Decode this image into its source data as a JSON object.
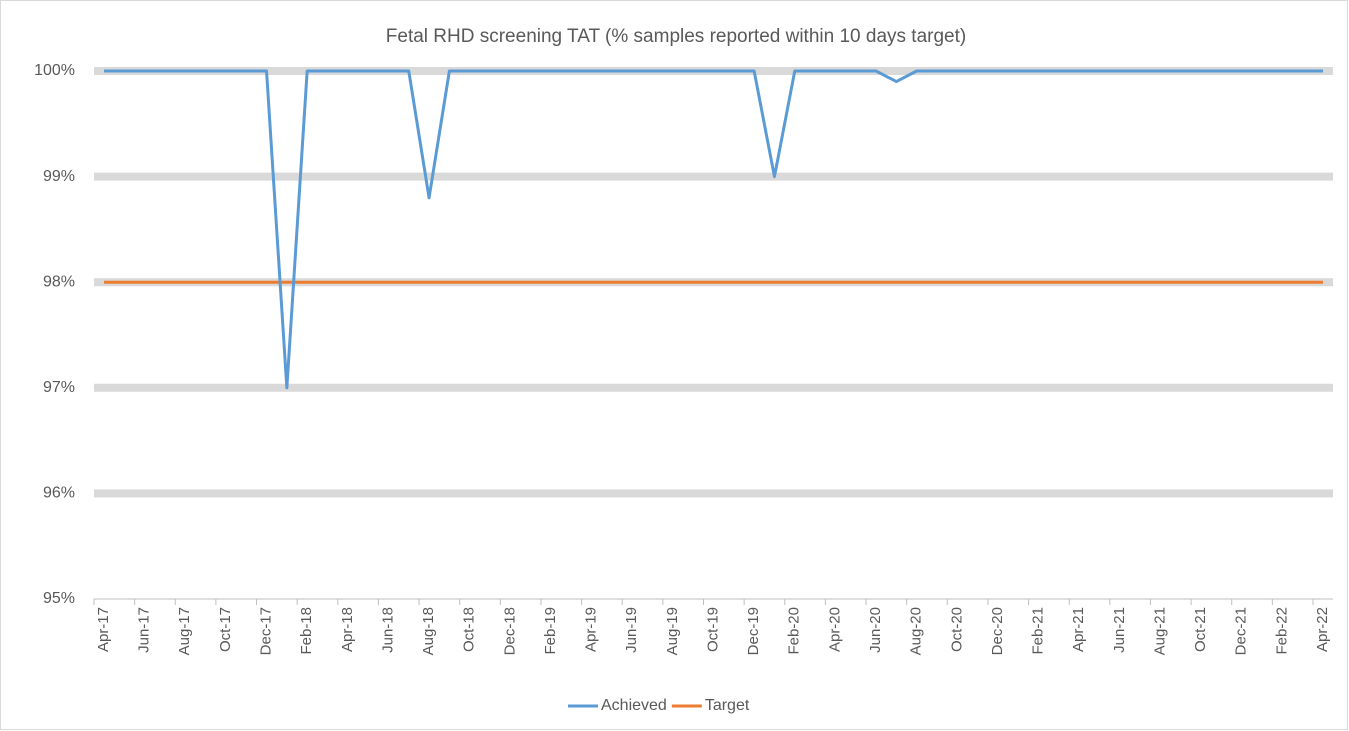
{
  "chart_data": {
    "type": "line",
    "title": "Fetal RHD screening TAT (% samples reported within 10 days target)",
    "categories": [
      "Apr-17",
      null,
      "Jun-17",
      null,
      "Aug-17",
      null,
      "Oct-17",
      null,
      "Dec-17",
      null,
      "Feb-18",
      null,
      "Apr-18",
      null,
      "Jun-18",
      null,
      "Aug-18",
      null,
      "Oct-18",
      null,
      "Dec-18",
      null,
      "Feb-19",
      null,
      "Apr-19",
      null,
      "Jun-19",
      null,
      "Aug-19",
      null,
      "Oct-19",
      null,
      "Dec-19",
      null,
      "Feb-20",
      null,
      "Apr-20",
      null,
      "Jun-20",
      null,
      "Aug-20",
      null,
      "Oct-20",
      null,
      "Dec-20",
      null,
      "Feb-21",
      null,
      "Apr-21",
      null,
      "Jun-21",
      null,
      "Aug-21",
      null,
      "Oct-21",
      null,
      "Dec-21",
      null,
      "Feb-22",
      null,
      "Apr-22"
    ],
    "series": [
      {
        "name": "Achieved",
        "color": "#5b9bd5",
        "values": [
          100,
          100,
          100,
          100,
          100,
          100,
          100,
          100,
          100,
          97,
          100,
          100,
          100,
          100,
          100,
          100,
          98.8,
          100,
          100,
          100,
          100,
          100,
          100,
          100,
          100,
          100,
          100,
          100,
          100,
          100,
          100,
          100,
          100,
          99,
          100,
          100,
          100,
          100,
          100,
          99.9,
          100,
          100,
          100,
          100,
          100,
          100,
          100,
          100,
          100,
          100,
          100,
          100,
          100,
          100,
          100,
          100,
          100,
          100,
          100,
          100,
          100
        ]
      },
      {
        "name": "Target",
        "color": "#ed7d31",
        "values": [
          98,
          98,
          98,
          98,
          98,
          98,
          98,
          98,
          98,
          98,
          98,
          98,
          98,
          98,
          98,
          98,
          98,
          98,
          98,
          98,
          98,
          98,
          98,
          98,
          98,
          98,
          98,
          98,
          98,
          98,
          98,
          98,
          98,
          98,
          98,
          98,
          98,
          98,
          98,
          98,
          98,
          98,
          98,
          98,
          98,
          98,
          98,
          98,
          98,
          98,
          98,
          98,
          98,
          98,
          98,
          98,
          98,
          98,
          98,
          98,
          98
        ]
      }
    ],
    "ylim": [
      95,
      100
    ],
    "yticks": [
      {
        "value": 95,
        "label": "95%"
      },
      {
        "value": 96,
        "label": "96%"
      },
      {
        "value": 97,
        "label": "97%"
      },
      {
        "value": 98,
        "label": "98%"
      },
      {
        "value": 99,
        "label": "99%"
      },
      {
        "value": 100,
        "label": "100%"
      }
    ],
    "grid": true,
    "legend": "bottom"
  }
}
